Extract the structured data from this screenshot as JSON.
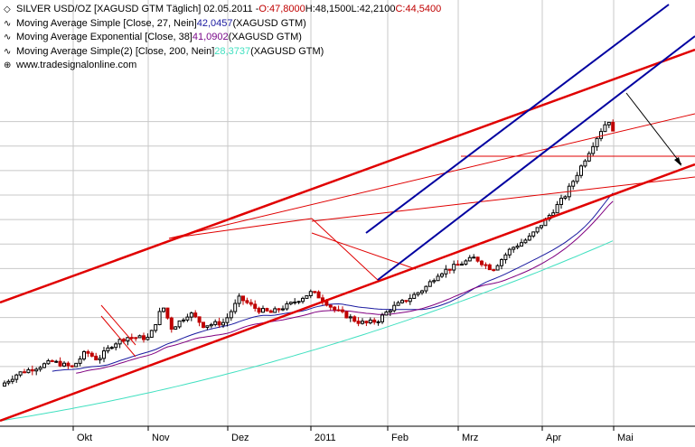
{
  "legend": {
    "title_prefix": "SILVER USD/OZ [XAGUSD GTM  Täglich] 02.05.2011 - ",
    "ohlc_o": "O:47,8000",
    "ohlc_h": " H:48,1500",
    "ohlc_l": " L:42,2100",
    "ohlc_c": " C:44,5400",
    "ma27_prefix": "Moving Average Simple [Close, 27, Nein] ",
    "ma27_value": "42,0457",
    "ma27_suffix": " (XAGUSD GTM)",
    "ema38_prefix": "Moving Average Exponential [Close, 38] ",
    "ema38_value": "41,0902",
    "ema38_suffix": " (XAGUSD GTM)",
    "ma200_prefix": "Moving Average Simple(2) [Close, 200, Nein] ",
    "ma200_value": "28,3737",
    "ma200_suffix": " (XAGUSD GTM)",
    "watermark": "www.tradesignalonline.com"
  },
  "colors": {
    "up": "#000000",
    "down": "#c00000",
    "ma27": "#1a1aa0",
    "ema38": "#800080",
    "ma200": "#40e0c0",
    "trend_red": "#e00000",
    "trend_blue": "#0000a0",
    "grid": "#c8c8c8",
    "background": "#ffffff"
  },
  "chart_data": {
    "type": "candlestick",
    "x_ticks": [
      "Okt",
      "Nov",
      "Dez",
      "2011",
      "Feb",
      "Mrz",
      "Apr",
      "Mai"
    ],
    "series": [
      {
        "name": "SILVER USD/OZ",
        "last": {
          "open": 47.8,
          "high": 48.15,
          "low": 42.21,
          "close": 44.54
        }
      },
      {
        "name": "Moving Average Simple [Close, 27, Nein]",
        "last": 42.0457
      },
      {
        "name": "Moving Average Exponential [Close, 38]",
        "last": 41.0902
      },
      {
        "name": "Moving Average Simple(2) [Close, 200, Nein]",
        "last": 28.3737
      }
    ],
    "grid": true
  }
}
